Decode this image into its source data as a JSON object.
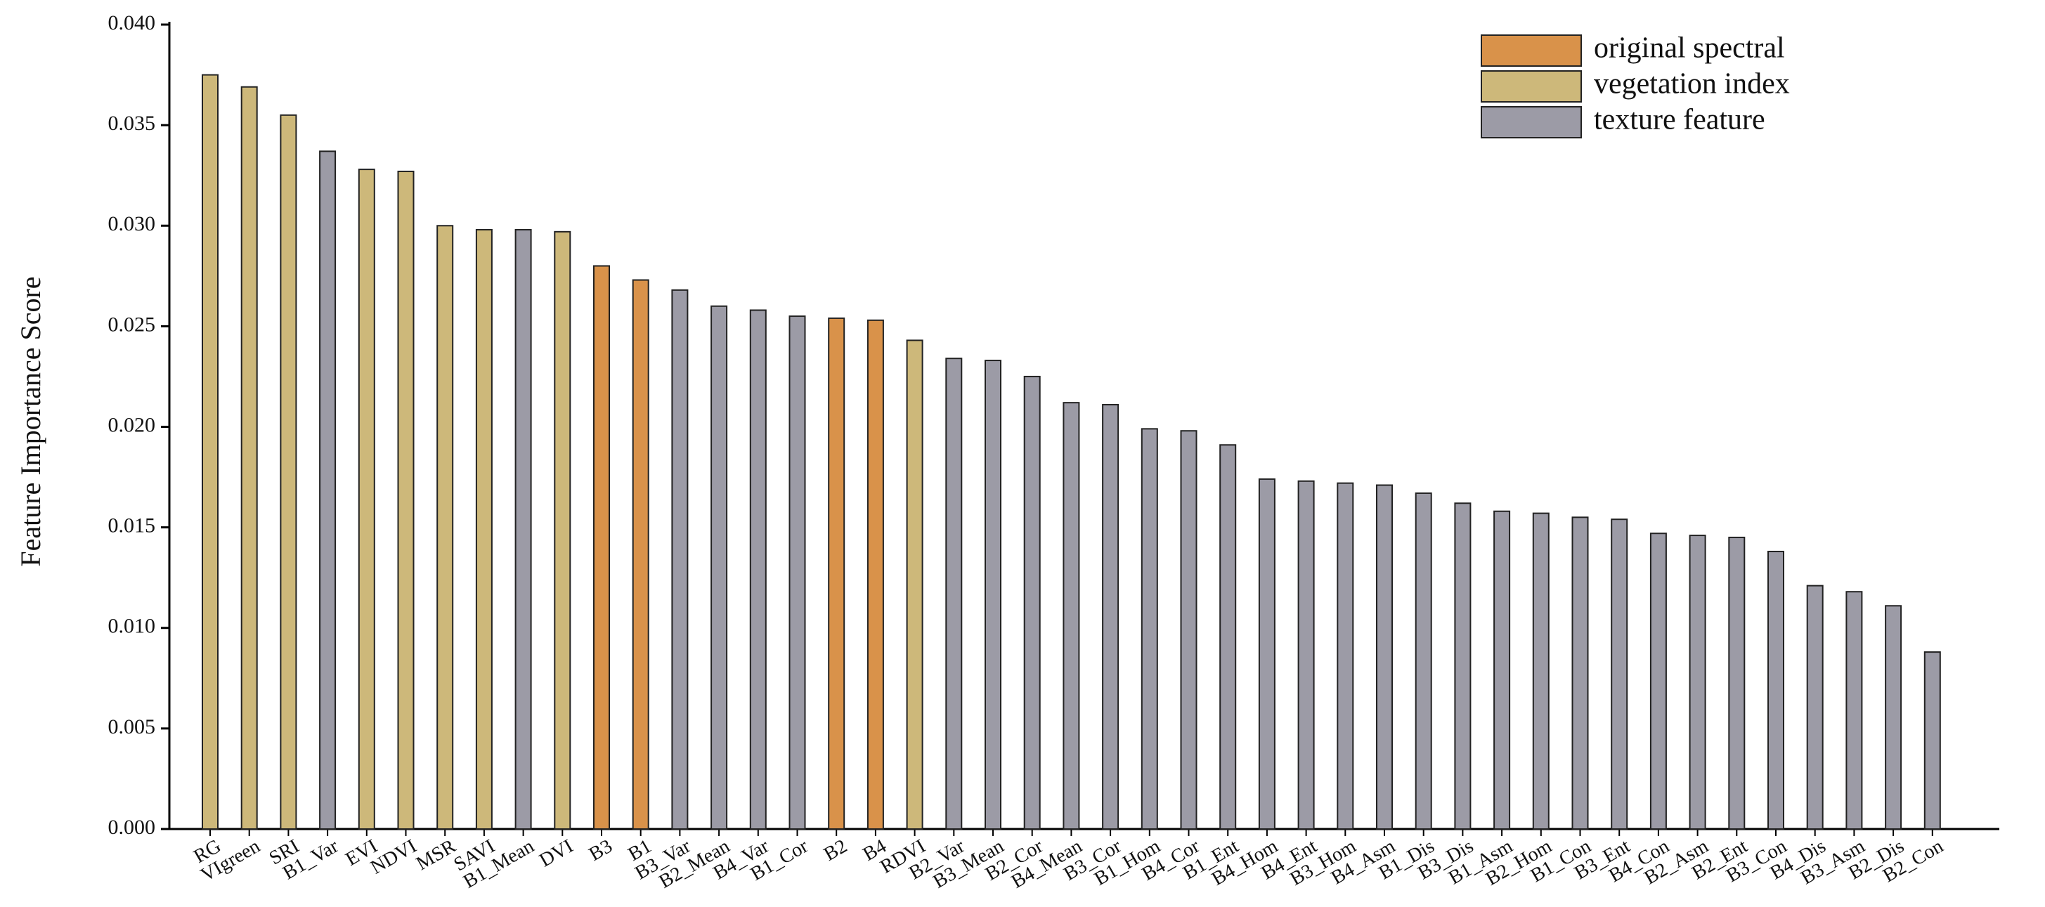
{
  "chart_data": {
    "type": "bar",
    "y_label": "Feature Importance Score",
    "categories": [
      "RG",
      "VIgreen",
      "SRI",
      "B1_Var",
      "EVI",
      "NDVI",
      "MSR",
      "SAVI",
      "B1_Mean",
      "DVI",
      "B3",
      "B1",
      "B3_Var",
      "B2_Mean",
      "B4_Var",
      "B1_Cor",
      "B2",
      "B4",
      "RDVI",
      "B2_Var",
      "B3_Mean",
      "B2_Cor",
      "B4_Mean",
      "B3_Cor",
      "B1_Hom",
      "B4_Cor",
      "B1_Ent",
      "B4_Hom",
      "B4_Ent",
      "B3_Hom",
      "B4_Asm",
      "B1_Dis",
      "B3_Dis",
      "B1_Asm",
      "B2_Hom",
      "B1_Con",
      "B3_Ent",
      "B4_Con",
      "B2_Asm",
      "B2_Ent",
      "B3_Con",
      "B4_Dis",
      "B3_Asm",
      "B2_Dis",
      "B2_Con"
    ],
    "series": [
      {
        "name": "original spectral",
        "color": "#d9924a",
        "values": [
          null,
          null,
          null,
          null,
          null,
          null,
          null,
          null,
          null,
          null,
          0.028,
          0.0273,
          null,
          null,
          null,
          null,
          0.0254,
          0.0253,
          null,
          null,
          null,
          null,
          null,
          null,
          null,
          null,
          null,
          null,
          null,
          null,
          null,
          null,
          null,
          null,
          null,
          null,
          null,
          null,
          null,
          null,
          null,
          null,
          null,
          null,
          null
        ]
      },
      {
        "name": "vegetation index",
        "color": "#cdb87a",
        "values": [
          0.0375,
          0.0369,
          0.0355,
          null,
          0.0328,
          0.0327,
          0.03,
          0.0298,
          null,
          0.0297,
          null,
          null,
          null,
          null,
          null,
          null,
          null,
          null,
          0.0243,
          null,
          null,
          null,
          null,
          null,
          null,
          null,
          null,
          null,
          null,
          null,
          null,
          null,
          null,
          null,
          null,
          null,
          null,
          null,
          null,
          null,
          null,
          null,
          null,
          null,
          null
        ]
      },
      {
        "name": "texture feature",
        "color": "#9c9ba6",
        "values": [
          null,
          null,
          null,
          0.0337,
          null,
          null,
          null,
          null,
          0.0298,
          null,
          null,
          null,
          0.0268,
          0.026,
          0.0258,
          0.0255,
          null,
          null,
          null,
          0.0234,
          0.0233,
          0.0225,
          0.0212,
          0.0211,
          0.0199,
          0.0198,
          0.0191,
          0.0174,
          0.0173,
          0.0172,
          0.0171,
          0.0167,
          0.0162,
          0.0158,
          0.0157,
          0.0155,
          0.0154,
          0.0147,
          0.0146,
          0.0145,
          0.0138,
          0.0121,
          0.0118,
          0.0111,
          0.0088
        ]
      }
    ],
    "ylim": [
      0,
      0.04
    ],
    "yticks": [
      {
        "value": 0,
        "label": "0.000"
      },
      {
        "value": 0.005,
        "label": "0.005"
      },
      {
        "value": 0.01,
        "label": "0.010"
      },
      {
        "value": 0.015,
        "label": "0.015"
      },
      {
        "value": 0.02,
        "label": "0.020"
      },
      {
        "value": 0.025,
        "label": "0.025"
      },
      {
        "value": 0.03,
        "label": "0.030"
      },
      {
        "value": 0.035,
        "label": "0.035"
      },
      {
        "value": 0.04,
        "label": "0.040"
      }
    ],
    "legend": "upper right"
  }
}
